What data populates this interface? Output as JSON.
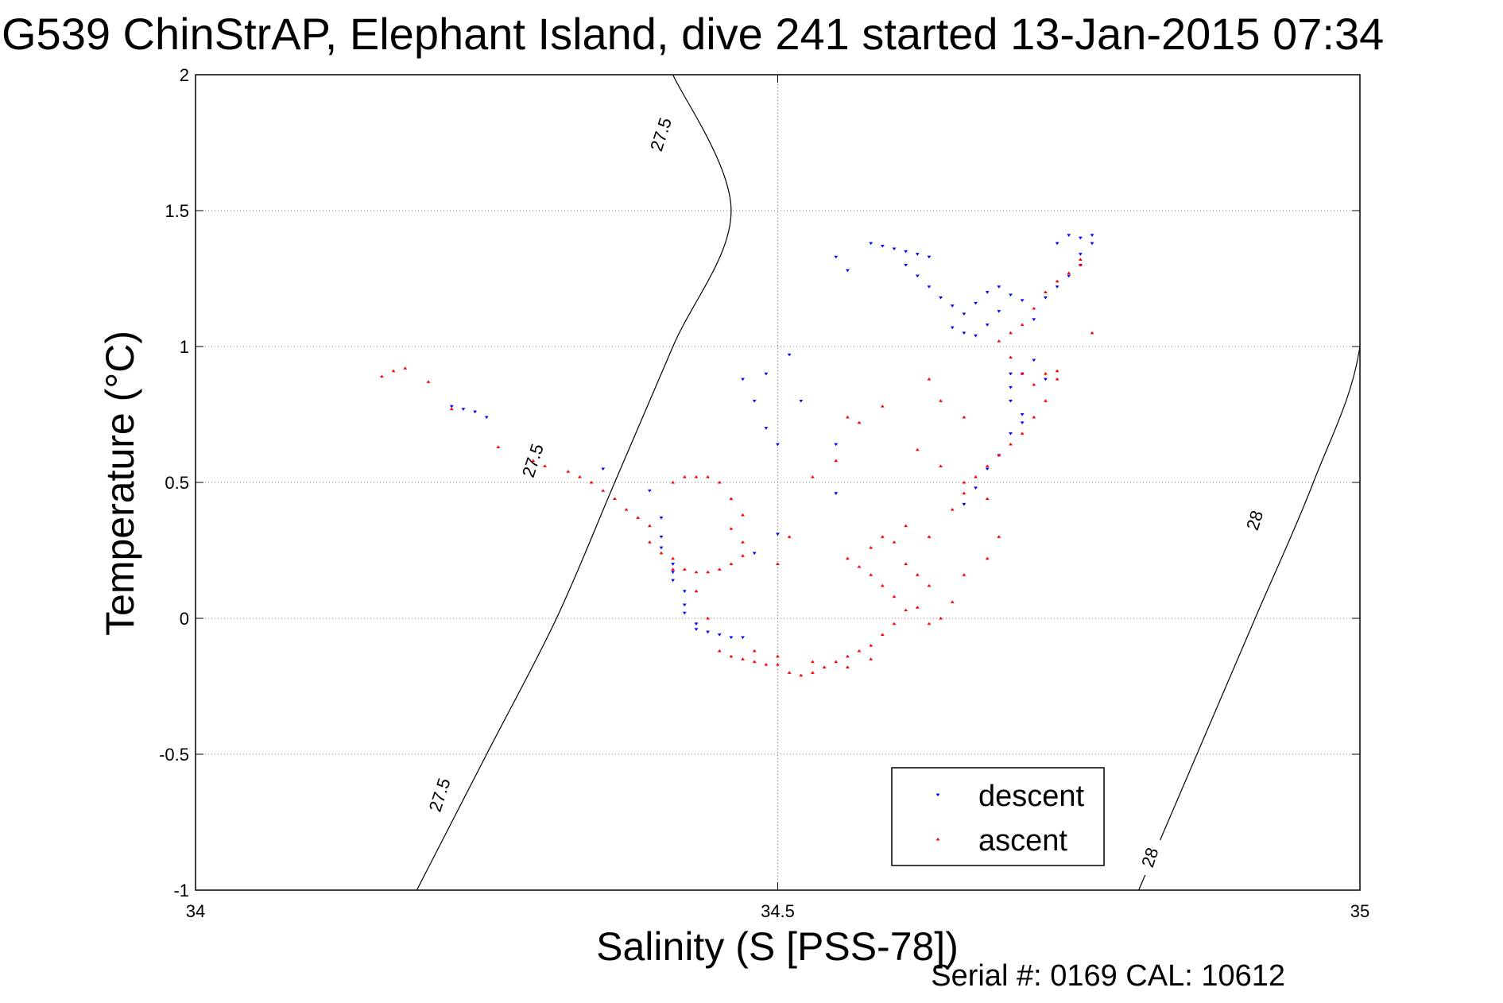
{
  "chart_data": {
    "type": "scatter",
    "title": "G539 ChinStrAP, Elephant Island, dive 241 started 13-Jan-2015 07:34",
    "xlabel": "Salinity (S [PSS-78])",
    "ylabel": "Temperature (°C)",
    "footer": "Serial #: 0169 CAL: 10612",
    "xlim": [
      34,
      35
    ],
    "ylim": [
      -1,
      2
    ],
    "xticks": [
      34,
      34.5,
      35
    ],
    "xtick_labels": [
      "34",
      "34.5",
      "35"
    ],
    "yticks": [
      -1,
      -0.5,
      0,
      0.5,
      1,
      1.5,
      2
    ],
    "ytick_labels": [
      "-1",
      "-0.5",
      "0",
      "0.5",
      "1",
      "1.5",
      "2"
    ],
    "grid": true,
    "legend_position": "bottom-right",
    "density_contours": [
      {
        "label": "27.5",
        "points": [
          [
            34.19,
            -1.0
          ],
          [
            34.25,
            -0.5
          ],
          [
            34.31,
            0.0
          ],
          [
            34.36,
            0.5
          ],
          [
            34.41,
            1.0
          ],
          [
            34.46,
            1.5
          ],
          [
            34.41,
            2.0
          ]
        ],
        "label_positions": [
          [
            34.21,
            -0.65
          ],
          [
            34.29,
            0.58
          ],
          [
            34.4,
            1.78
          ]
        ]
      },
      {
        "label": "28",
        "points": [
          [
            34.81,
            -1.0
          ],
          [
            34.86,
            -0.5
          ],
          [
            34.91,
            0.0
          ],
          [
            34.96,
            0.5
          ],
          [
            35.0,
            1.0
          ],
          [
            35.0,
            1.63
          ]
        ],
        "label_positions": [
          [
            34.82,
            -0.88
          ],
          [
            34.91,
            0.36
          ]
        ]
      }
    ],
    "series": [
      {
        "name": "descent",
        "color": "#0000ff",
        "marker": "triangle-down",
        "points": [
          [
            34.22,
            0.78
          ],
          [
            34.23,
            0.77
          ],
          [
            34.24,
            0.76
          ],
          [
            34.25,
            0.74
          ],
          [
            34.35,
            0.55
          ],
          [
            34.39,
            0.47
          ],
          [
            34.4,
            0.37
          ],
          [
            34.4,
            0.3
          ],
          [
            34.4,
            0.26
          ],
          [
            34.41,
            0.2
          ],
          [
            34.41,
            0.17
          ],
          [
            34.41,
            0.14
          ],
          [
            34.42,
            0.1
          ],
          [
            34.42,
            0.05
          ],
          [
            34.42,
            0.02
          ],
          [
            34.43,
            -0.02
          ],
          [
            34.43,
            -0.04
          ],
          [
            34.44,
            -0.05
          ],
          [
            34.45,
            -0.06
          ],
          [
            34.46,
            -0.07
          ],
          [
            34.47,
            -0.07
          ],
          [
            34.48,
            0.24
          ],
          [
            34.47,
            0.88
          ],
          [
            34.49,
            0.9
          ],
          [
            34.48,
            0.8
          ],
          [
            34.49,
            0.7
          ],
          [
            34.5,
            0.64
          ],
          [
            34.5,
            0.31
          ],
          [
            34.51,
            0.97
          ],
          [
            34.52,
            0.8
          ],
          [
            34.55,
            0.64
          ],
          [
            34.55,
            0.46
          ],
          [
            34.55,
            1.33
          ],
          [
            34.56,
            1.28
          ],
          [
            34.58,
            1.38
          ],
          [
            34.59,
            1.37
          ],
          [
            34.6,
            1.36
          ],
          [
            34.61,
            1.35
          ],
          [
            34.62,
            1.34
          ],
          [
            34.63,
            1.33
          ],
          [
            34.61,
            1.3
          ],
          [
            34.62,
            1.26
          ],
          [
            34.63,
            1.22
          ],
          [
            34.64,
            1.18
          ],
          [
            34.65,
            1.15
          ],
          [
            34.66,
            1.12
          ],
          [
            34.67,
            1.16
          ],
          [
            34.68,
            1.2
          ],
          [
            34.69,
            1.22
          ],
          [
            34.7,
            1.19
          ],
          [
            34.71,
            1.17
          ],
          [
            34.69,
            1.13
          ],
          [
            34.68,
            1.08
          ],
          [
            34.67,
            1.04
          ],
          [
            34.66,
            1.05
          ],
          [
            34.65,
            1.07
          ],
          [
            34.72,
            1.1
          ],
          [
            34.73,
            1.18
          ],
          [
            34.74,
            1.22
          ],
          [
            34.75,
            1.26
          ],
          [
            34.76,
            1.3
          ],
          [
            34.76,
            1.34
          ],
          [
            34.77,
            1.38
          ],
          [
            34.77,
            1.41
          ],
          [
            34.76,
            1.4
          ],
          [
            34.75,
            1.41
          ],
          [
            34.74,
            1.38
          ],
          [
            34.72,
            0.95
          ],
          [
            34.71,
            0.9
          ],
          [
            34.7,
            0.85
          ],
          [
            34.7,
            0.8
          ],
          [
            34.71,
            0.75
          ],
          [
            34.71,
            0.72
          ],
          [
            34.7,
            0.68
          ],
          [
            34.69,
            0.6
          ],
          [
            34.68,
            0.55
          ],
          [
            34.67,
            0.48
          ],
          [
            34.66,
            0.42
          ],
          [
            34.7,
            0.9
          ],
          [
            34.73,
            0.88
          ]
        ]
      },
      {
        "name": "ascent",
        "color": "#ff0000",
        "marker": "triangle-up",
        "points": [
          [
            34.16,
            0.89
          ],
          [
            34.17,
            0.91
          ],
          [
            34.18,
            0.92
          ],
          [
            34.2,
            0.87
          ],
          [
            34.22,
            0.77
          ],
          [
            34.26,
            0.63
          ],
          [
            34.29,
            0.58
          ],
          [
            34.3,
            0.56
          ],
          [
            34.32,
            0.54
          ],
          [
            34.33,
            0.52
          ],
          [
            34.34,
            0.5
          ],
          [
            34.35,
            0.47
          ],
          [
            34.36,
            0.44
          ],
          [
            34.37,
            0.4
          ],
          [
            34.38,
            0.37
          ],
          [
            34.39,
            0.34
          ],
          [
            34.39,
            0.28
          ],
          [
            34.4,
            0.24
          ],
          [
            34.41,
            0.22
          ],
          [
            34.41,
            0.18
          ],
          [
            34.42,
            0.18
          ],
          [
            34.43,
            0.17
          ],
          [
            34.44,
            0.17
          ],
          [
            34.45,
            0.18
          ],
          [
            34.46,
            0.2
          ],
          [
            34.47,
            0.23
          ],
          [
            34.47,
            0.28
          ],
          [
            34.46,
            0.33
          ],
          [
            34.47,
            0.38
          ],
          [
            34.46,
            0.44
          ],
          [
            34.45,
            0.5
          ],
          [
            34.44,
            0.52
          ],
          [
            34.43,
            0.52
          ],
          [
            34.42,
            0.52
          ],
          [
            34.41,
            0.5
          ],
          [
            34.43,
            0.1
          ],
          [
            34.44,
            0.0
          ],
          [
            34.45,
            -0.12
          ],
          [
            34.46,
            -0.14
          ],
          [
            34.47,
            -0.15
          ],
          [
            34.48,
            -0.16
          ],
          [
            34.49,
            -0.17
          ],
          [
            34.5,
            -0.17
          ],
          [
            34.51,
            -0.2
          ],
          [
            34.52,
            -0.21
          ],
          [
            34.53,
            -0.2
          ],
          [
            34.54,
            -0.18
          ],
          [
            34.55,
            -0.16
          ],
          [
            34.56,
            -0.14
          ],
          [
            34.57,
            -0.12
          ],
          [
            34.58,
            -0.1
          ],
          [
            34.59,
            -0.06
          ],
          [
            34.6,
            -0.02
          ],
          [
            34.61,
            0.03
          ],
          [
            34.6,
            0.08
          ],
          [
            34.59,
            0.12
          ],
          [
            34.58,
            0.16
          ],
          [
            34.57,
            0.19
          ],
          [
            34.56,
            0.22
          ],
          [
            34.58,
            0.26
          ],
          [
            34.59,
            0.3
          ],
          [
            34.6,
            0.28
          ],
          [
            34.61,
            0.2
          ],
          [
            34.62,
            0.16
          ],
          [
            34.63,
            0.12
          ],
          [
            34.62,
            0.04
          ],
          [
            34.64,
            0.0
          ],
          [
            34.65,
            0.4
          ],
          [
            34.66,
            0.46
          ],
          [
            34.67,
            0.52
          ],
          [
            34.68,
            0.56
          ],
          [
            34.69,
            0.6
          ],
          [
            34.7,
            0.64
          ],
          [
            34.71,
            0.68
          ],
          [
            34.72,
            0.74
          ],
          [
            34.73,
            0.8
          ],
          [
            34.72,
            0.86
          ],
          [
            34.71,
            0.9
          ],
          [
            34.73,
            0.9
          ],
          [
            34.74,
            0.91
          ],
          [
            34.74,
            0.88
          ],
          [
            34.7,
            0.96
          ],
          [
            34.69,
            1.02
          ],
          [
            34.7,
            1.05
          ],
          [
            34.71,
            1.08
          ],
          [
            34.72,
            1.14
          ],
          [
            34.73,
            1.2
          ],
          [
            34.74,
            1.24
          ],
          [
            34.75,
            1.27
          ],
          [
            34.76,
            1.3
          ],
          [
            34.76,
            1.32
          ],
          [
            34.77,
            1.05
          ],
          [
            34.66,
            0.74
          ],
          [
            34.64,
            0.8
          ],
          [
            34.63,
            0.88
          ],
          [
            34.59,
            0.78
          ],
          [
            34.57,
            0.72
          ],
          [
            34.55,
            0.58
          ],
          [
            34.53,
            0.52
          ],
          [
            34.51,
            0.3
          ],
          [
            34.5,
            0.2
          ],
          [
            34.56,
            0.74
          ],
          [
            34.62,
            0.62
          ],
          [
            34.64,
            0.56
          ],
          [
            34.66,
            0.5
          ],
          [
            34.68,
            0.44
          ],
          [
            34.63,
            0.3
          ],
          [
            34.61,
            0.34
          ],
          [
            34.48,
            -0.12
          ],
          [
            34.5,
            -0.14
          ],
          [
            34.53,
            -0.16
          ],
          [
            34.56,
            -0.18
          ],
          [
            34.58,
            -0.15
          ],
          [
            34.63,
            -0.02
          ],
          [
            34.65,
            0.06
          ],
          [
            34.66,
            0.16
          ],
          [
            34.68,
            0.22
          ],
          [
            34.69,
            0.3
          ]
        ]
      }
    ]
  }
}
